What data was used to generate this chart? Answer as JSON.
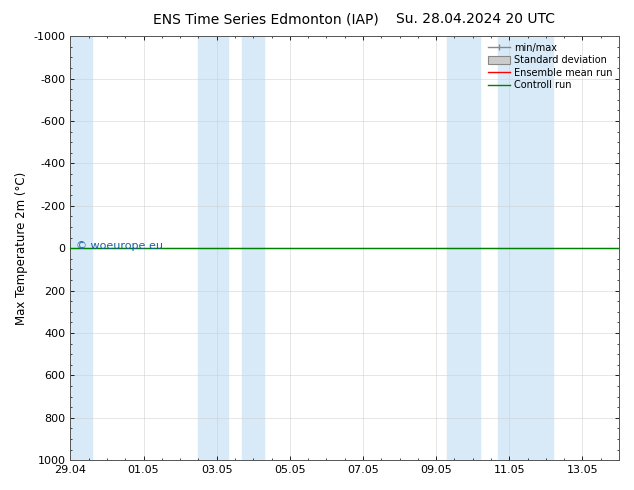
{
  "title_left": "ENS Time Series Edmonton (IAP)",
  "title_right": "Su. 28.04.2024 20 UTC",
  "ylabel": "Max Temperature 2m (°C)",
  "ylim_bottom": 1000,
  "ylim_top": -1000,
  "yticks": [
    -1000,
    -800,
    -600,
    -400,
    -200,
    0,
    200,
    400,
    600,
    800,
    1000
  ],
  "x_tick_labels": [
    "29.04",
    "01.05",
    "03.05",
    "05.05",
    "07.05",
    "09.05",
    "11.05",
    "13.05"
  ],
  "x_tick_positions": [
    0,
    2,
    4,
    6,
    8,
    10,
    12,
    14
  ],
  "xlim": [
    0,
    15
  ],
  "shaded_bands": [
    [
      0.0,
      0.6
    ],
    [
      3.5,
      4.3
    ],
    [
      4.7,
      5.3
    ],
    [
      10.3,
      11.2
    ],
    [
      11.7,
      13.2
    ]
  ],
  "shaded_color": "#d8eaf8",
  "control_run_y": 0,
  "ensemble_mean_y": 0,
  "watermark": "© woeurope.eu",
  "legend_labels": [
    "min/max",
    "Standard deviation",
    "Ensemble mean run",
    "Controll run"
  ],
  "background_color": "#ffffff",
  "title_fontsize": 10,
  "tick_fontsize": 8,
  "ylabel_fontsize": 8.5
}
